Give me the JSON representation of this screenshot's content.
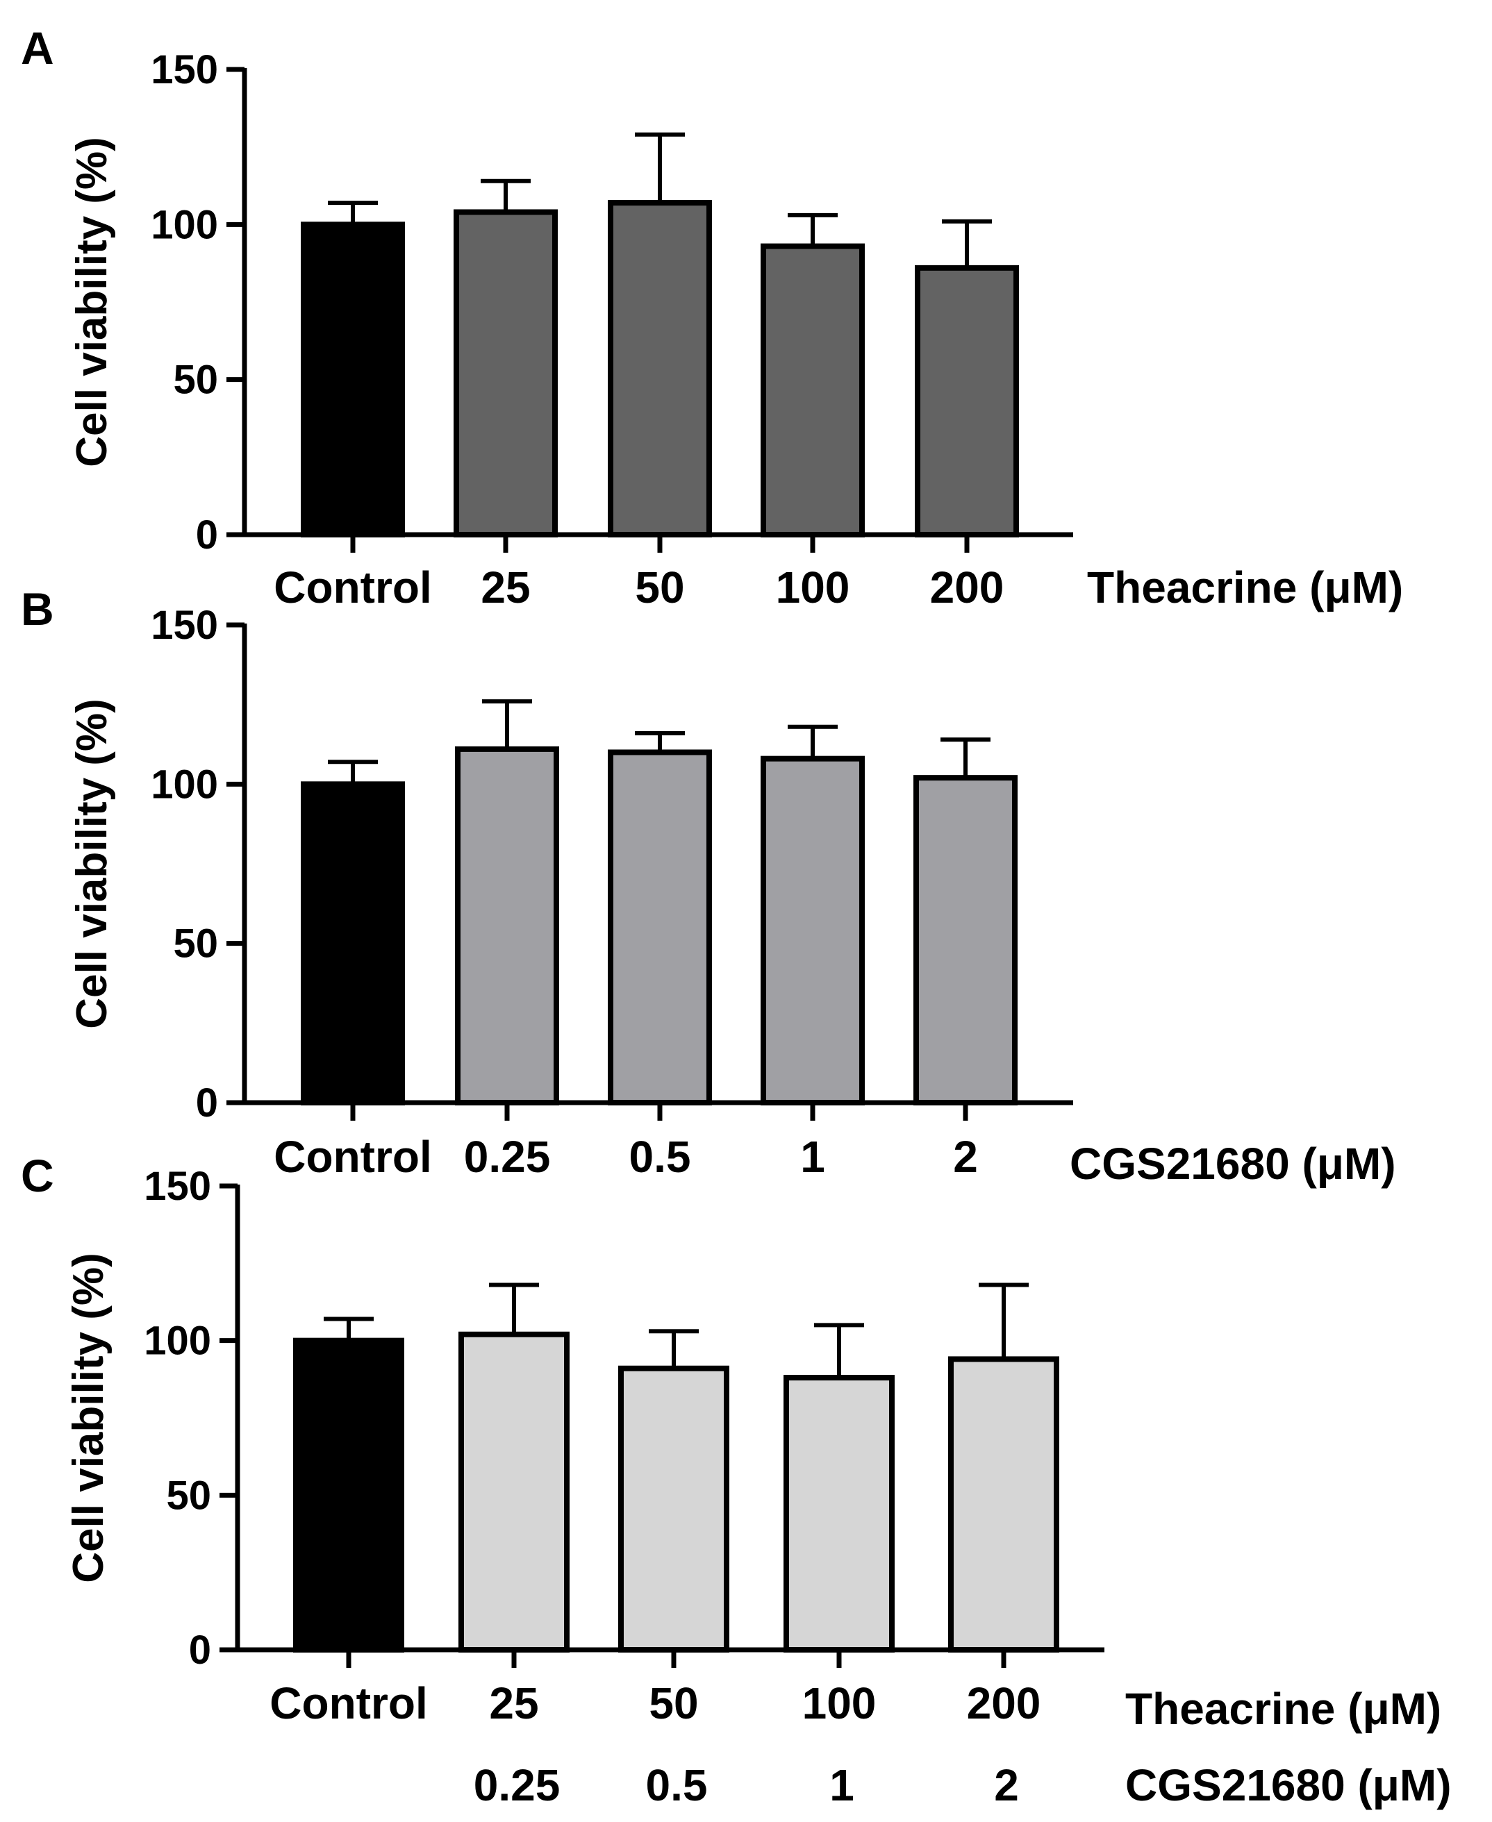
{
  "chart_data": [
    {
      "type": "bar",
      "panel_label": "A",
      "ylabel": "Cell viability (%)",
      "ylim": [
        0,
        150
      ],
      "yticks": [
        0,
        50,
        100,
        150
      ],
      "categories": [
        "Control",
        "25",
        "50",
        "100",
        "200"
      ],
      "x_title_rows": [
        "Theacrine (μM)"
      ],
      "values": [
        100,
        104,
        107,
        93,
        86
      ],
      "errors": [
        7,
        10,
        22,
        10,
        15
      ],
      "colors": [
        "#000000",
        "#636363",
        "#636363",
        "#636363",
        "#636363"
      ]
    },
    {
      "type": "bar",
      "panel_label": "B",
      "ylabel": "Cell viability (%)",
      "ylim": [
        0,
        150
      ],
      "yticks": [
        0,
        50,
        100,
        150
      ],
      "categories": [
        "Control",
        "0.25",
        "0.5",
        "1",
        "2"
      ],
      "x_title_rows": [
        "CGS21680 (μM)"
      ],
      "values": [
        100,
        111,
        110,
        108,
        102
      ],
      "errors": [
        7,
        15,
        6,
        10,
        12
      ],
      "colors": [
        "#000000",
        "#a0a0a4",
        "#a0a0a4",
        "#a0a0a4",
        "#a0a0a4"
      ]
    },
    {
      "type": "bar",
      "panel_label": "C",
      "ylabel": "Cell viability (%)",
      "ylim": [
        0,
        150
      ],
      "yticks": [
        0,
        50,
        100,
        150
      ],
      "categories": [
        "Control",
        "25",
        "50",
        "100",
        "200"
      ],
      "categories_row2": [
        "",
        "0.25",
        "0.5",
        "1",
        "2"
      ],
      "x_title_rows": [
        "Theacrine (μM)",
        "CGS21680 (μM)"
      ],
      "values": [
        100,
        102,
        91,
        88,
        94
      ],
      "errors": [
        7,
        16,
        12,
        17,
        24
      ],
      "colors": [
        "#000000",
        "#d6d6d6",
        "#d6d6d6",
        "#d6d6d6",
        "#d6d6d6"
      ]
    }
  ]
}
